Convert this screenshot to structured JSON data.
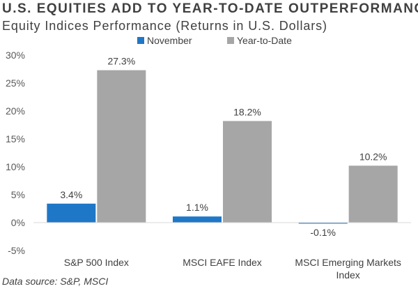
{
  "header": {
    "title": "U.S. EQUITIES ADD TO YEAR-TO-DATE OUTPERFORMANCE",
    "subtitle": "Equity Indices Performance (Returns in U.S. Dollars)"
  },
  "footer": {
    "source": "Data source: S&P, MSCI"
  },
  "chart_data": {
    "type": "bar",
    "title": "U.S. EQUITIES ADD TO YEAR-TO-DATE OUTPERFORMANCE",
    "subtitle": "Equity Indices Performance (Returns in U.S. Dollars)",
    "categories": [
      [
        "S&P 500 Index"
      ],
      [
        "MSCI EAFE Index"
      ],
      [
        "MSCI Emerging Markets",
        "Index"
      ]
    ],
    "series": [
      {
        "name": "November",
        "values": [
          3.4,
          1.1,
          -0.1
        ],
        "labels": [
          "3.4%",
          "1.1%",
          "-0.1%"
        ],
        "color": "#1f77c8"
      },
      {
        "name": "Year-to-Date",
        "values": [
          27.3,
          18.2,
          10.2
        ],
        "labels": [
          "27.3%",
          "18.2%",
          "10.2%"
        ],
        "color": "#a6a6a6"
      }
    ],
    "yticks": [
      30,
      25,
      20,
      15,
      10,
      5,
      0,
      -5
    ],
    "ytick_labels": [
      "30%",
      "25%",
      "20%",
      "15%",
      "10%",
      "5%",
      "0%",
      "-5%"
    ],
    "ylim": [
      -5,
      30
    ],
    "xlabel": "",
    "ylabel": "",
    "grid": false,
    "legend": "top-left",
    "axis_color": "#d9d9d9",
    "label_color": "#404040"
  }
}
